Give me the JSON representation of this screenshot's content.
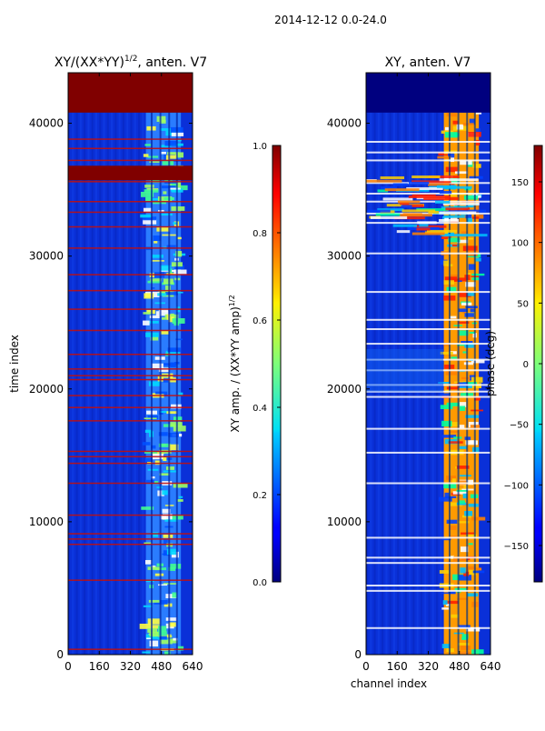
{
  "suptitle": "2014-12-12 0.0-24.0",
  "chart_data": [
    {
      "type": "heatmap",
      "title_main": "XY/(XX*YY)",
      "title_sup": "1/2",
      "title_tail": ", anten. V7",
      "xlabel": "",
      "ylabel": "time index",
      "xlim": [
        0,
        640
      ],
      "ylim": [
        0,
        43800
      ],
      "x_ticks": [
        0,
        160,
        320,
        480,
        640
      ],
      "x_tick_labels": [
        "0",
        "160",
        "320",
        "480",
        "640"
      ],
      "y_ticks": [
        0,
        10000,
        20000,
        30000,
        40000
      ],
      "y_tick_labels": [
        "0",
        "10000",
        "20000",
        "30000",
        "40000"
      ],
      "band_channels": [
        400,
        580
      ],
      "flagged_rows": [
        400,
        5600,
        8300,
        8700,
        9100,
        10500,
        12900,
        14400,
        14900,
        15300,
        17600,
        18600,
        19500,
        20700,
        21000,
        21500,
        22600,
        24400,
        26000,
        27400,
        28600,
        30600,
        32200,
        33300,
        34100,
        35600,
        37200,
        38100,
        38800
      ],
      "colorbar": {
        "label": "XY amp. / (XX*YY amp)",
        "label_sup": "1/2",
        "range": [
          0.0,
          1.0
        ],
        "ticks": [
          0.0,
          0.2,
          0.4,
          0.6,
          0.8,
          1.0
        ],
        "tick_labels": [
          "0.0",
          "0.2",
          "0.4",
          "0.6",
          "0.8",
          "1.0"
        ],
        "cmap": "jet"
      }
    },
    {
      "type": "heatmap",
      "title": "XY, anten. V7",
      "xlabel": "channel index",
      "ylabel": "",
      "xlim": [
        0,
        640
      ],
      "ylim": [
        0,
        43800
      ],
      "x_ticks": [
        0,
        160,
        320,
        480,
        640
      ],
      "x_tick_labels": [
        "0",
        "160",
        "320",
        "480",
        "640"
      ],
      "y_ticks": [
        0,
        10000,
        20000,
        30000,
        40000
      ],
      "y_tick_labels": [
        "0",
        "10000",
        "20000",
        "30000",
        "40000"
      ],
      "band_channels": [
        400,
        580
      ],
      "flagged_rows": [
        2000,
        4800,
        5200,
        6900,
        7300,
        8800,
        12900,
        15200,
        17000,
        19400,
        19800,
        20300,
        21400,
        22200,
        23400,
        24500,
        25200,
        27300,
        30200,
        32500,
        33200,
        34100,
        34700,
        35500,
        37200,
        37800,
        38600
      ],
      "colorbar": {
        "label": "phase (deg)",
        "range": [
          -180,
          180
        ],
        "ticks": [
          -150,
          -100,
          -50,
          0,
          50,
          100,
          150
        ],
        "tick_labels": [
          "−150",
          "−100",
          "−50",
          "0",
          "50",
          "100",
          "150"
        ],
        "cmap": "jet"
      }
    }
  ],
  "colors": {
    "jet_low": "#00007f",
    "jet_bg": "#0a2cd8",
    "jet_high": "#7f0000"
  }
}
